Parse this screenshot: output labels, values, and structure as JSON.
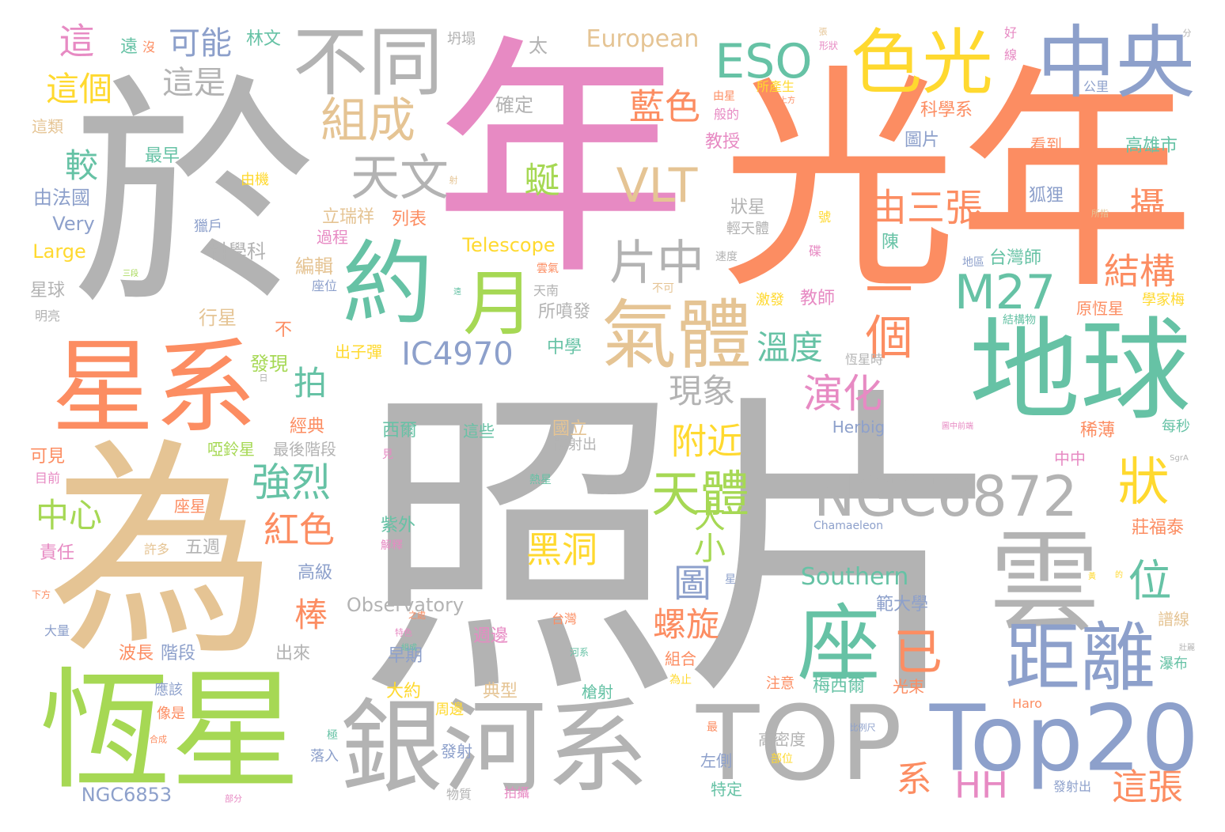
{
  "palette": {
    "gray": "#b3b3b3",
    "orange": "#fc8d62",
    "pink": "#e78ac3",
    "green": "#66c2a5",
    "lime": "#a6d854",
    "tan": "#e5c494",
    "blue": "#8da0cb",
    "yellow": "#ffd92f"
  },
  "words": [
    {
      "text": "照片",
      "color": "#b3b3b3"
    },
    {
      "text": "光年",
      "color": "#fc8d62"
    },
    {
      "text": "年",
      "color": "#e78ac3"
    },
    {
      "text": "於",
      "color": "#b3b3b3"
    },
    {
      "text": "為",
      "color": "#e5c494"
    },
    {
      "text": "恆星",
      "color": "#a6d854"
    },
    {
      "text": "星系",
      "color": "#fc8d62"
    },
    {
      "text": "地球",
      "color": "#66c2a5"
    },
    {
      "text": "中央",
      "color": "#8da0cb"
    },
    {
      "text": "銀河系",
      "color": "#b3b3b3"
    },
    {
      "text": "TOP",
      "color": "#b3b3b3"
    },
    {
      "text": "Top20",
      "color": "#8da0cb"
    },
    {
      "text": "雲",
      "color": "#b3b3b3"
    },
    {
      "text": "不同",
      "color": "#b3b3b3"
    },
    {
      "text": "色光",
      "color": "#ffd92f"
    },
    {
      "text": "約",
      "color": "#66c2a5"
    },
    {
      "text": "月",
      "color": "#a6d854"
    },
    {
      "text": "氣體",
      "color": "#e5c494"
    },
    {
      "text": "NGC6872",
      "color": "#b3b3b3"
    },
    {
      "text": "座",
      "color": "#66c2a5"
    },
    {
      "text": "距離",
      "color": "#8da0cb"
    },
    {
      "text": "ESO",
      "color": "#66c2a5"
    },
    {
      "text": "組成",
      "color": "#e5c494"
    },
    {
      "text": "天文",
      "color": "#b3b3b3"
    },
    {
      "text": "VLT",
      "color": "#e5c494"
    },
    {
      "text": "片中",
      "color": "#b3b3b3"
    },
    {
      "text": "M27",
      "color": "#66c2a5"
    },
    {
      "text": "一個",
      "color": "#fc8d62"
    },
    {
      "text": "天體",
      "color": "#a6d854"
    },
    {
      "text": "狀",
      "color": "#ffd92f"
    },
    {
      "text": "藍色",
      "color": "#fc8d62"
    },
    {
      "text": "由三張",
      "color": "#fc8d62"
    },
    {
      "text": "演化",
      "color": "#e78ac3"
    },
    {
      "text": "IC4970",
      "color": "#8da0cb"
    },
    {
      "text": "強烈",
      "color": "#66c2a5"
    },
    {
      "text": "紅色",
      "color": "#fc8d62"
    },
    {
      "text": "附近",
      "color": "#ffd92f"
    },
    {
      "text": "現象",
      "color": "#b3b3b3"
    },
    {
      "text": "溫度",
      "color": "#66c2a5"
    },
    {
      "text": "結構",
      "color": "#fc8d62"
    },
    {
      "text": "攝",
      "color": "#fc8d62"
    },
    {
      "text": "可能",
      "color": "#8da0cb"
    },
    {
      "text": "這個",
      "color": "#ffd92f"
    },
    {
      "text": "這",
      "color": "#e78ac3"
    },
    {
      "text": "這是",
      "color": "#b3b3b3"
    },
    {
      "text": "較",
      "color": "#66c2a5"
    },
    {
      "text": "蜒",
      "color": "#a6d854"
    },
    {
      "text": "European",
      "color": "#e5c494"
    },
    {
      "text": "黑洞",
      "color": "#ffd92f"
    },
    {
      "text": "圖",
      "color": "#8da0cb"
    },
    {
      "text": "大小",
      "color": "#a6d854"
    },
    {
      "text": "螺旋",
      "color": "#fc8d62"
    },
    {
      "text": "已",
      "color": "#fc8d62"
    },
    {
      "text": "位",
      "color": "#66c2a5"
    },
    {
      "text": "Southern",
      "color": "#66c2a5"
    },
    {
      "text": "系",
      "color": "#fc8d62"
    },
    {
      "text": "HH",
      "color": "#e78ac3"
    },
    {
      "text": "這張",
      "color": "#fc8d62"
    },
    {
      "text": "中心",
      "color": "#a6d854"
    },
    {
      "text": "拍",
      "color": "#66c2a5"
    },
    {
      "text": "棒",
      "color": "#fc8d62"
    },
    {
      "text": "Telescope",
      "color": "#ffd92f"
    },
    {
      "text": "Observatory",
      "color": "#b3b3b3"
    },
    {
      "text": "NGC6853",
      "color": "#8da0cb"
    },
    {
      "text": "Herbig",
      "color": "#8da0cb"
    },
    {
      "text": "Chamaeleon",
      "color": "#8da0cb"
    },
    {
      "text": "Haro",
      "color": "#fc8d62"
    },
    {
      "text": "Very",
      "color": "#8da0cb"
    },
    {
      "text": "Large",
      "color": "#ffd92f"
    },
    {
      "text": "由法國",
      "color": "#8da0cb"
    },
    {
      "text": "星球",
      "color": "#b3b3b3"
    },
    {
      "text": "明亮",
      "color": "#b3b3b3"
    },
    {
      "text": "這類",
      "color": "#e5c494"
    },
    {
      "text": "最早",
      "color": "#66c2a5"
    },
    {
      "text": "林文",
      "color": "#66c2a5"
    },
    {
      "text": "遠",
      "color": "#66c2a5"
    },
    {
      "text": "沒",
      "color": "#fc8d62"
    },
    {
      "text": "坍塌",
      "color": "#b3b3b3"
    },
    {
      "text": "太",
      "color": "#b3b3b3"
    },
    {
      "text": "確定",
      "color": "#b3b3b3"
    },
    {
      "text": "由機",
      "color": "#ffd92f"
    },
    {
      "text": "獵戶",
      "color": "#8da0cb"
    },
    {
      "text": "科學科",
      "color": "#b3b3b3"
    },
    {
      "text": "立瑞祥",
      "color": "#e5c494"
    },
    {
      "text": "列表",
      "color": "#fc8d62"
    },
    {
      "text": "過程",
      "color": "#e78ac3"
    },
    {
      "text": "編輯",
      "color": "#e5c494"
    },
    {
      "text": "座位",
      "color": "#8da0cb"
    },
    {
      "text": "行星",
      "color": "#e5c494"
    },
    {
      "text": "不",
      "color": "#fc8d62"
    },
    {
      "text": "發現",
      "color": "#a6d854"
    },
    {
      "text": "出子彈",
      "color": "#ffd92f"
    },
    {
      "text": "所噴發",
      "color": "#b3b3b3"
    },
    {
      "text": "中學",
      "color": "#66c2a5"
    },
    {
      "text": "經典",
      "color": "#fc8d62"
    },
    {
      "text": "啞鈴星",
      "color": "#a6d854"
    },
    {
      "text": "最後階段",
      "color": "#b3b3b3"
    },
    {
      "text": "可見",
      "color": "#fc8d62"
    },
    {
      "text": "目前",
      "color": "#e78ac3"
    },
    {
      "text": "責任",
      "color": "#e78ac3"
    },
    {
      "text": "許多",
      "color": "#e5c494"
    },
    {
      "text": "五週",
      "color": "#b3b3b3"
    },
    {
      "text": "座星",
      "color": "#fc8d62"
    },
    {
      "text": "高級",
      "color": "#8da0cb"
    },
    {
      "text": "大量",
      "color": "#8da0cb"
    },
    {
      "text": "下方",
      "color": "#fc8d62"
    },
    {
      "text": "波長",
      "color": "#fc8d62"
    },
    {
      "text": "階段",
      "color": "#8da0cb"
    },
    {
      "text": "出來",
      "color": "#b3b3b3"
    },
    {
      "text": "應該",
      "color": "#8da0cb"
    },
    {
      "text": "像是",
      "color": "#fc8d62"
    },
    {
      "text": "西爾",
      "color": "#66c2a5"
    },
    {
      "text": "這些",
      "color": "#66c2a5"
    },
    {
      "text": "國立",
      "color": "#e5c494"
    },
    {
      "text": "紫外",
      "color": "#66c2a5"
    },
    {
      "text": "解釋",
      "color": "#e78ac3"
    },
    {
      "text": "週邊",
      "color": "#e78ac3"
    },
    {
      "text": "早期",
      "color": "#8da0cb"
    },
    {
      "text": "大約",
      "color": "#ffd92f"
    },
    {
      "text": "典型",
      "color": "#e5c494"
    },
    {
      "text": "周邊",
      "color": "#ffd92f"
    },
    {
      "text": "槍射",
      "color": "#66c2a5"
    },
    {
      "text": "發射",
      "color": "#8da0cb"
    },
    {
      "text": "物質",
      "color": "#b3b3b3"
    },
    {
      "text": "拍攝",
      "color": "#e78ac3"
    },
    {
      "text": "左側",
      "color": "#8da0cb"
    },
    {
      "text": "特定",
      "color": "#66c2a5"
    },
    {
      "text": "高密度",
      "color": "#b3b3b3"
    },
    {
      "text": "部位",
      "color": "#ffd92f"
    },
    {
      "text": "注意",
      "color": "#fc8d62"
    },
    {
      "text": "梅西爾",
      "color": "#66c2a5"
    },
    {
      "text": "光束",
      "color": "#fc8d62"
    },
    {
      "text": "發射出",
      "color": "#8da0cb"
    },
    {
      "text": "範大學",
      "color": "#8da0cb"
    },
    {
      "text": "組合",
      "color": "#fc8d62"
    },
    {
      "text": "為止",
      "color": "#ffd92f"
    },
    {
      "text": "教師",
      "color": "#e78ac3"
    },
    {
      "text": "激發",
      "color": "#ffd92f"
    },
    {
      "text": "陳",
      "color": "#66c2a5"
    },
    {
      "text": "台灣師",
      "color": "#66c2a5"
    },
    {
      "text": "地區",
      "color": "#8da0cb"
    },
    {
      "text": "狐狸",
      "color": "#8da0cb"
    },
    {
      "text": "看到",
      "color": "#fc8d62"
    },
    {
      "text": "高雄市",
      "color": "#66c2a5"
    },
    {
      "text": "圖片",
      "color": "#8da0cb"
    },
    {
      "text": "科學系",
      "color": "#fc8d62"
    },
    {
      "text": "公里",
      "color": "#8da0cb"
    },
    {
      "text": "教授",
      "color": "#e78ac3"
    },
    {
      "text": "所產生",
      "color": "#ffd92f"
    },
    {
      "text": "般的",
      "color": "#e78ac3"
    },
    {
      "text": "由星",
      "color": "#fc8d62"
    },
    {
      "text": "狀星",
      "color": "#b3b3b3"
    },
    {
      "text": "輕天體",
      "color": "#b3b3b3"
    },
    {
      "text": "速度",
      "color": "#b3b3b3"
    },
    {
      "text": "原恆星",
      "color": "#fc8d62"
    },
    {
      "text": "學家梅",
      "color": "#ffd92f"
    },
    {
      "text": "結構物",
      "color": "#66c2a5"
    },
    {
      "text": "恆星時",
      "color": "#b3b3b3"
    },
    {
      "text": "稀薄",
      "color": "#fc8d62"
    },
    {
      "text": "每秒",
      "color": "#66c2a5"
    },
    {
      "text": "中中",
      "color": "#e78ac3"
    },
    {
      "text": "莊福泰",
      "color": "#fc8d62"
    },
    {
      "text": "譜線",
      "color": "#e5c494"
    },
    {
      "text": "瀑布",
      "color": "#66c2a5"
    },
    {
      "text": "台灣",
      "color": "#fc8d62"
    },
    {
      "text": "雲氣",
      "color": "#fc8d62"
    },
    {
      "text": "天南",
      "color": "#b3b3b3"
    },
    {
      "text": "不可",
      "color": "#e5c494"
    },
    {
      "text": "熱星",
      "color": "#66c2a5"
    },
    {
      "text": "體射出",
      "color": "#b3b3b3"
    },
    {
      "text": "形狀",
      "color": "#e78ac3"
    },
    {
      "text": "好",
      "color": "#e78ac3"
    },
    {
      "text": "線",
      "color": "#e78ac3"
    },
    {
      "text": "所指",
      "color": "#e5c494"
    },
    {
      "text": "碟",
      "color": "#e78ac3"
    },
    {
      "text": "號",
      "color": "#ffd92f"
    },
    {
      "text": "SgrA",
      "color": "#b3b3b3"
    },
    {
      "text": "圖中前端",
      "color": "#e78ac3"
    },
    {
      "text": "河系",
      "color": "#66c2a5"
    },
    {
      "text": "最",
      "color": "#fc8d62"
    },
    {
      "text": "極",
      "color": "#66c2a5"
    },
    {
      "text": "落入",
      "color": "#8da0cb"
    },
    {
      "text": "星",
      "color": "#8da0cb"
    },
    {
      "text": "見",
      "color": "#e78ac3"
    },
    {
      "text": "特色",
      "color": "#e78ac3"
    },
    {
      "text": "之處",
      "color": "#fc8d62"
    },
    {
      "text": "組成",
      "color": "#66c2a5"
    },
    {
      "text": "比例尺",
      "color": "#8da0cb"
    },
    {
      "text": "黃",
      "color": "#ffd92f"
    },
    {
      "text": "合成",
      "color": "#fc8d62"
    },
    {
      "text": "部分",
      "color": "#e78ac3"
    },
    {
      "text": "三段",
      "color": "#a6d854"
    },
    {
      "text": "分",
      "color": "#b3b3b3"
    },
    {
      "text": "射",
      "color": "#e5c494"
    },
    {
      "text": "日",
      "color": "#b3b3b3"
    },
    {
      "text": "上方",
      "color": "#fc8d62"
    },
    {
      "text": "遠",
      "color": "#66c2a5"
    },
    {
      "text": "張",
      "color": "#e5c494"
    },
    {
      "text": "的",
      "color": "#ffd92f"
    },
    {
      "text": "壯麗",
      "color": "#b3b3b3"
    }
  ]
}
